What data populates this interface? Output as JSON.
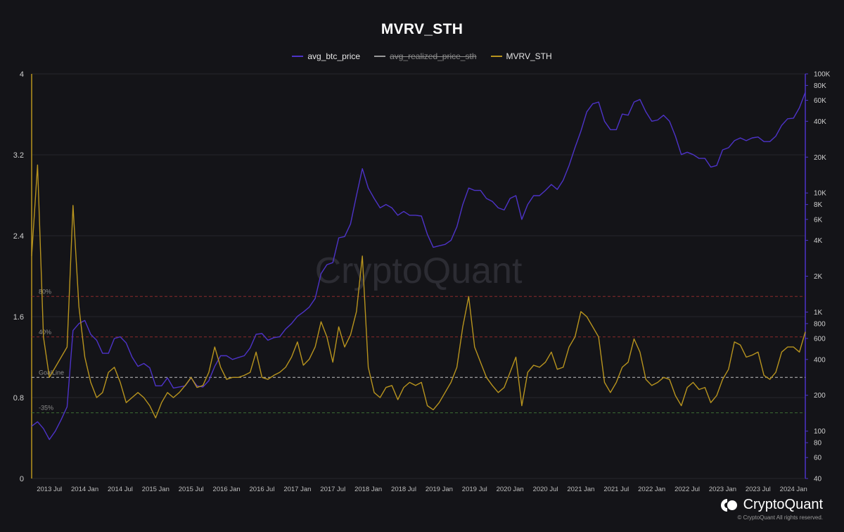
{
  "title": "MVRV_STH",
  "legend": [
    {
      "label": "avg_btc_price",
      "color": "#4d33c8",
      "active": true
    },
    {
      "label": "avg_realized_price_sth",
      "color": "#9a9a9a",
      "active": false
    },
    {
      "label": "MVRV_STH",
      "color": "#b8941e",
      "active": true
    }
  ],
  "colors": {
    "background": "#141418",
    "grid": "#26262c",
    "price": "#4d33c8",
    "mvrv": "#b8941e",
    "line80": "#8a2a2a",
    "line40": "#8a2a2a",
    "goal": "#bfbfbf",
    "line35": "#3c6e34"
  },
  "watermark": "CryptoQuant",
  "brand": {
    "name": "CryptoQuant",
    "copyright": "© CryptoQuant All rights reserved."
  },
  "chart_data": {
    "type": "line",
    "x_tick_labels": [
      "2013 Jul",
      "2014 Jan",
      "2014 Jul",
      "2015 Jan",
      "2015 Jul",
      "2016 Jan",
      "2016 Jul",
      "2017 Jan",
      "2017 Jul",
      "2018 Jan",
      "2018 Jul",
      "2019 Jan",
      "2019 Jul",
      "2020 Jan",
      "2020 Jul",
      "2021 Jan",
      "2021 Jul",
      "2022 Jan",
      "2022 Jul",
      "2023 Jan",
      "2023 Jul",
      "2024 Jan"
    ],
    "x_range": [
      "2013-04",
      "2024-03"
    ],
    "y_left": {
      "ticks": [
        0,
        0.8,
        1.6,
        2.4,
        3.2,
        4
      ],
      "tick_labels": [
        "0",
        "0.8",
        "1.6",
        "2.4",
        "3.2",
        "4"
      ],
      "range": [
        0,
        4
      ]
    },
    "y_right": {
      "scale": "log",
      "range": [
        40,
        100000
      ],
      "ticks": [
        40,
        60,
        80,
        100,
        200,
        400,
        600,
        800,
        1000,
        2000,
        4000,
        6000,
        8000,
        10000,
        20000,
        40000,
        60000,
        80000,
        100000
      ],
      "tick_labels": [
        "40",
        "60",
        "80",
        "100",
        "200",
        "400",
        "600",
        "800",
        "1K",
        "2K",
        "4K",
        "6K",
        "8K",
        "10K",
        "20K",
        "40K",
        "60K",
        "80K",
        "100K"
      ]
    },
    "reference_lines": [
      {
        "label": "80%",
        "value": 1.8,
        "style": "dashed",
        "color_key": "line80"
      },
      {
        "label": "40%",
        "value": 1.4,
        "style": "dashed",
        "color_key": "line40"
      },
      {
        "label": "GoalLine",
        "value": 1.0,
        "style": "dashed",
        "color_key": "goal"
      },
      {
        "label": "-35%",
        "value": 0.65,
        "style": "dashed",
        "color_key": "line35"
      }
    ],
    "series": [
      {
        "name": "avg_btc_price",
        "axis": "right",
        "x": [
          "2013-04",
          "2013-05",
          "2013-06",
          "2013-07",
          "2013-08",
          "2013-09",
          "2013-10",
          "2013-11",
          "2013-12",
          "2014-01",
          "2014-02",
          "2014-03",
          "2014-04",
          "2014-05",
          "2014-06",
          "2014-07",
          "2014-08",
          "2014-09",
          "2014-10",
          "2014-11",
          "2014-12",
          "2015-01",
          "2015-02",
          "2015-03",
          "2015-04",
          "2015-05",
          "2015-06",
          "2015-07",
          "2015-08",
          "2015-09",
          "2015-10",
          "2015-11",
          "2015-12",
          "2016-01",
          "2016-02",
          "2016-03",
          "2016-04",
          "2016-05",
          "2016-06",
          "2016-07",
          "2016-08",
          "2016-09",
          "2016-10",
          "2016-11",
          "2016-12",
          "2017-01",
          "2017-02",
          "2017-03",
          "2017-04",
          "2017-05",
          "2017-06",
          "2017-07",
          "2017-08",
          "2017-09",
          "2017-10",
          "2017-11",
          "2017-12",
          "2018-01",
          "2018-02",
          "2018-03",
          "2018-04",
          "2018-05",
          "2018-06",
          "2018-07",
          "2018-08",
          "2018-09",
          "2018-10",
          "2018-11",
          "2018-12",
          "2019-01",
          "2019-02",
          "2019-03",
          "2019-04",
          "2019-05",
          "2019-06",
          "2019-07",
          "2019-08",
          "2019-09",
          "2019-10",
          "2019-11",
          "2019-12",
          "2020-01",
          "2020-02",
          "2020-03",
          "2020-04",
          "2020-05",
          "2020-06",
          "2020-07",
          "2020-08",
          "2020-09",
          "2020-10",
          "2020-11",
          "2020-12",
          "2021-01",
          "2021-02",
          "2021-03",
          "2021-04",
          "2021-05",
          "2021-06",
          "2021-07",
          "2021-08",
          "2021-09",
          "2021-10",
          "2021-11",
          "2021-12",
          "2022-01",
          "2022-02",
          "2022-03",
          "2022-04",
          "2022-05",
          "2022-06",
          "2022-07",
          "2022-08",
          "2022-09",
          "2022-10",
          "2022-11",
          "2022-12",
          "2023-01",
          "2023-02",
          "2023-03",
          "2023-04",
          "2023-05",
          "2023-06",
          "2023-07",
          "2023-08",
          "2023-09",
          "2023-10",
          "2023-11",
          "2023-12",
          "2024-01",
          "2024-02",
          "2024-03"
        ],
        "values": [
          110,
          120,
          105,
          85,
          100,
          125,
          160,
          700,
          800,
          850,
          650,
          580,
          450,
          450,
          600,
          620,
          550,
          420,
          350,
          370,
          340,
          240,
          240,
          280,
          230,
          235,
          240,
          280,
          240,
          235,
          265,
          350,
          430,
          430,
          400,
          415,
          430,
          500,
          650,
          660,
          580,
          610,
          620,
          720,
          800,
          920,
          1000,
          1100,
          1300,
          2100,
          2500,
          2600,
          4200,
          4300,
          5500,
          9500,
          16000,
          11000,
          9000,
          7500,
          8000,
          7500,
          6500,
          7000,
          6500,
          6500,
          6400,
          4500,
          3500,
          3600,
          3700,
          4000,
          5200,
          8000,
          11000,
          10500,
          10500,
          9000,
          8500,
          7500,
          7200,
          9000,
          9500,
          6000,
          8000,
          9500,
          9500,
          10500,
          11800,
          10700,
          12800,
          17000,
          24000,
          33000,
          48000,
          56000,
          58000,
          40000,
          34000,
          34000,
          46000,
          45000,
          58000,
          61000,
          48000,
          40000,
          41000,
          45000,
          40000,
          30000,
          21000,
          22000,
          21000,
          19500,
          19500,
          16500,
          17000,
          23000,
          24000,
          27500,
          29000,
          27500,
          29000,
          29500,
          27000,
          27000,
          30000,
          37000,
          42000,
          42500,
          52000,
          70000
        ]
      },
      {
        "name": "MVRV_STH",
        "axis": "left",
        "x": [
          "2013-04",
          "2013-05",
          "2013-06",
          "2013-07",
          "2013-08",
          "2013-09",
          "2013-10",
          "2013-11",
          "2013-12",
          "2014-01",
          "2014-02",
          "2014-03",
          "2014-04",
          "2014-05",
          "2014-06",
          "2014-07",
          "2014-08",
          "2014-09",
          "2014-10",
          "2014-11",
          "2014-12",
          "2015-01",
          "2015-02",
          "2015-03",
          "2015-04",
          "2015-05",
          "2015-06",
          "2015-07",
          "2015-08",
          "2015-09",
          "2015-10",
          "2015-11",
          "2015-12",
          "2016-01",
          "2016-02",
          "2016-03",
          "2016-04",
          "2016-05",
          "2016-06",
          "2016-07",
          "2016-08",
          "2016-09",
          "2016-10",
          "2016-11",
          "2016-12",
          "2017-01",
          "2017-02",
          "2017-03",
          "2017-04",
          "2017-05",
          "2017-06",
          "2017-07",
          "2017-08",
          "2017-09",
          "2017-10",
          "2017-11",
          "2017-12",
          "2018-01",
          "2018-02",
          "2018-03",
          "2018-04",
          "2018-05",
          "2018-06",
          "2018-07",
          "2018-08",
          "2018-09",
          "2018-10",
          "2018-11",
          "2018-12",
          "2019-01",
          "2019-02",
          "2019-03",
          "2019-04",
          "2019-05",
          "2019-06",
          "2019-07",
          "2019-08",
          "2019-09",
          "2019-10",
          "2019-11",
          "2019-12",
          "2020-01",
          "2020-02",
          "2020-03",
          "2020-04",
          "2020-05",
          "2020-06",
          "2020-07",
          "2020-08",
          "2020-09",
          "2020-10",
          "2020-11",
          "2020-12",
          "2021-01",
          "2021-02",
          "2021-03",
          "2021-04",
          "2021-05",
          "2021-06",
          "2021-07",
          "2021-08",
          "2021-09",
          "2021-10",
          "2021-11",
          "2021-12",
          "2022-01",
          "2022-02",
          "2022-03",
          "2022-04",
          "2022-05",
          "2022-06",
          "2022-07",
          "2022-08",
          "2022-09",
          "2022-10",
          "2022-11",
          "2022-12",
          "2023-01",
          "2023-02",
          "2023-03",
          "2023-04",
          "2023-05",
          "2023-06",
          "2023-07",
          "2023-08",
          "2023-09",
          "2023-10",
          "2023-11",
          "2023-12",
          "2024-01",
          "2024-02",
          "2024-03"
        ],
        "values": [
          2.2,
          3.1,
          1.4,
          1.0,
          1.1,
          1.2,
          1.3,
          2.7,
          1.7,
          1.2,
          0.95,
          0.8,
          0.85,
          1.05,
          1.1,
          0.95,
          0.75,
          0.8,
          0.85,
          0.8,
          0.72,
          0.6,
          0.75,
          0.85,
          0.8,
          0.85,
          0.92,
          1.0,
          0.9,
          0.92,
          1.05,
          1.3,
          1.1,
          0.98,
          1.0,
          1.0,
          1.02,
          1.05,
          1.25,
          1.0,
          0.98,
          1.02,
          1.05,
          1.1,
          1.2,
          1.35,
          1.12,
          1.18,
          1.3,
          1.55,
          1.4,
          1.15,
          1.5,
          1.3,
          1.42,
          1.65,
          2.2,
          1.1,
          0.85,
          0.8,
          0.9,
          0.92,
          0.78,
          0.9,
          0.95,
          0.92,
          0.95,
          0.72,
          0.68,
          0.75,
          0.85,
          0.95,
          1.1,
          1.5,
          1.8,
          1.3,
          1.15,
          1.0,
          0.92,
          0.85,
          0.9,
          1.05,
          1.2,
          0.72,
          1.05,
          1.12,
          1.1,
          1.15,
          1.25,
          1.08,
          1.1,
          1.3,
          1.4,
          1.65,
          1.6,
          1.5,
          1.4,
          0.95,
          0.85,
          0.95,
          1.1,
          1.15,
          1.38,
          1.25,
          0.98,
          0.92,
          0.95,
          1.0,
          0.98,
          0.82,
          0.72,
          0.9,
          0.95,
          0.88,
          0.9,
          0.75,
          0.82,
          0.98,
          1.08,
          1.35,
          1.32,
          1.2,
          1.22,
          1.25,
          1.02,
          0.98,
          1.05,
          1.25,
          1.3,
          1.3,
          1.25,
          1.45
        ]
      }
    ]
  }
}
